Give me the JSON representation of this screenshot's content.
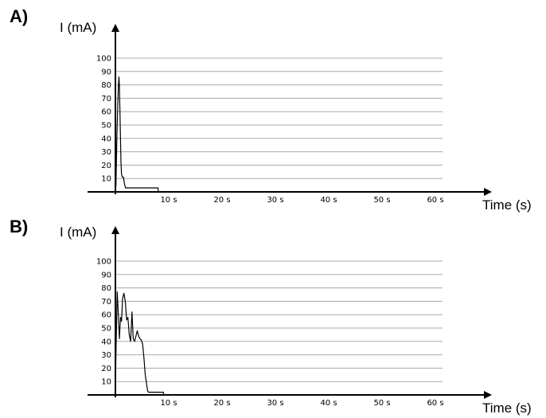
{
  "chart_data": [
    {
      "type": "line",
      "panel_label": "A)",
      "ylabel": "I (mA)",
      "xlabel": "Time (s)",
      "yticks": [
        10,
        20,
        30,
        40,
        50,
        60,
        70,
        80,
        90,
        100
      ],
      "xticks": [
        "10 s",
        "20 s",
        "30 s",
        "40 s",
        "50 s",
        "60 s"
      ],
      "xtick_values": [
        10,
        20,
        30,
        40,
        50,
        60
      ],
      "ylim": [
        0,
        100
      ],
      "xlim": [
        0,
        60
      ],
      "grid": true,
      "series": [
        {
          "x": [
            0,
            0.1,
            0.3,
            0.45,
            0.55,
            0.65,
            0.75,
            0.85,
            0.95,
            1.05,
            1.15,
            1.3,
            1.5,
            1.7,
            1.9,
            2.1,
            8.0,
            8.05,
            8.5
          ],
          "y": [
            0,
            5,
            45,
            65,
            78,
            86,
            80,
            60,
            40,
            22,
            13,
            11,
            11,
            6,
            3,
            3,
            3,
            0,
            0
          ]
        }
      ]
    },
    {
      "type": "line",
      "panel_label": "B)",
      "ylabel": "I (mA)",
      "xlabel": "Time (s)",
      "yticks": [
        10,
        20,
        30,
        40,
        50,
        60,
        70,
        80,
        90,
        100
      ],
      "xticks": [
        "10 s",
        "20 s",
        "30 s",
        "40 s",
        "50 s",
        "60 s"
      ],
      "xtick_values": [
        10,
        20,
        30,
        40,
        50,
        60
      ],
      "ylim": [
        0,
        100
      ],
      "xlim": [
        0,
        60
      ],
      "grid": true,
      "series": [
        {
          "x": [
            0,
            0.15,
            0.35,
            0.55,
            0.75,
            0.95,
            1.15,
            1.35,
            1.6,
            1.85,
            2.1,
            2.35,
            2.6,
            2.85,
            3.1,
            3.35,
            3.6,
            3.85,
            4.1,
            4.35,
            4.6,
            4.85,
            5.1,
            5.35,
            5.6,
            5.85,
            6.05,
            6.2,
            9.0,
            9.05,
            9.5
          ],
          "y": [
            5,
            40,
            77,
            60,
            42,
            58,
            55,
            72,
            76,
            70,
            56,
            58,
            45,
            40,
            62,
            42,
            40,
            44,
            48,
            44,
            42,
            41,
            38,
            28,
            15,
            8,
            3,
            2,
            2,
            0,
            0
          ]
        }
      ]
    }
  ]
}
